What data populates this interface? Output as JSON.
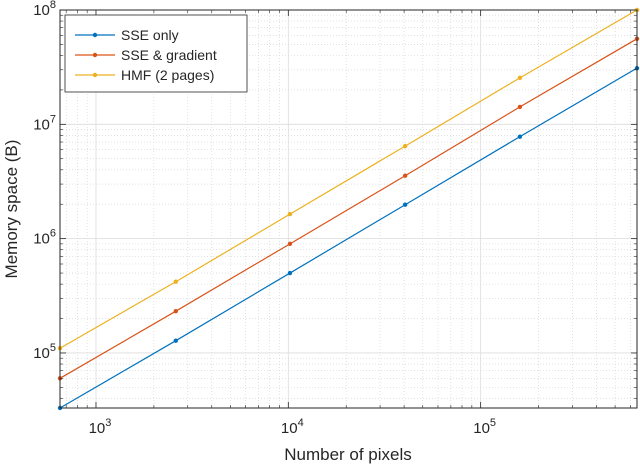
{
  "chart_data": {
    "type": "line",
    "title": "",
    "xlabel": "Number of pixels",
    "ylabel": "Memory space (B)",
    "x_scale": "log",
    "y_scale": "log",
    "xlim": [
      650,
      650000
    ],
    "ylim": [
      33000,
      100000000
    ],
    "grid": true,
    "legend_position": "top-left",
    "x_ticks": [
      {
        "value": 1000,
        "base": "10",
        "exp": "3"
      },
      {
        "value": 10000,
        "base": "10",
        "exp": "4"
      },
      {
        "value": 100000,
        "base": "10",
        "exp": "5"
      }
    ],
    "y_ticks": [
      {
        "value": 100000,
        "base": "10",
        "exp": "5"
      },
      {
        "value": 1000000,
        "base": "10",
        "exp": "6"
      },
      {
        "value": 10000000,
        "base": "10",
        "exp": "7"
      },
      {
        "value": 100000000,
        "base": "10",
        "exp": "8"
      }
    ],
    "x": [
      650,
      2600,
      10200,
      40500,
      160000,
      650000
    ],
    "series": [
      {
        "name": "SSE only",
        "color": "#0072BD",
        "values": [
          33000,
          128000,
          500000,
          1980000,
          7800000,
          31000000
        ]
      },
      {
        "name": "SSE & gradient",
        "color": "#D95319",
        "values": [
          60000,
          232000,
          900000,
          3550000,
          14200000,
          56000000
        ]
      },
      {
        "name": "HMF (2 pages)",
        "color": "#EDB120",
        "values": [
          110000,
          420000,
          1640000,
          6450000,
          25500000,
          100000000
        ]
      }
    ]
  }
}
